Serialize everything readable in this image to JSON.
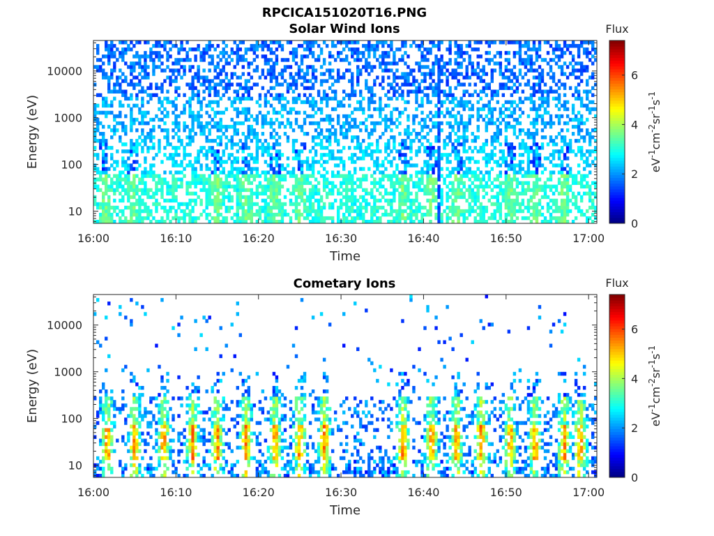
{
  "figure": {
    "title": "RPCICA151020T16.PNG"
  },
  "chart_data": [
    {
      "type": "heatmap",
      "id": "solar",
      "title": "Solar Wind Ions",
      "xlabel": "Time",
      "ylabel": "Energy (eV)",
      "x_tick_labels": [
        "16:00",
        "16:10",
        "16:20",
        "16:30",
        "16:40",
        "16:50",
        "17:00"
      ],
      "x_range_minutes": [
        0,
        61
      ],
      "y_scale": "log",
      "y_range": [
        5.5,
        45000
      ],
      "y_tick_values": [
        10,
        100,
        1000,
        10000
      ],
      "y_tick_labels": [
        "10",
        "100",
        "1000",
        "10000"
      ],
      "colorbar": {
        "title": "Flux",
        "label": "eV-1cm-2sr-1s-1",
        "range": [
          0,
          7.4
        ],
        "ticks": [
          "0",
          "2",
          "4",
          "6"
        ],
        "colormap": "jet"
      },
      "bursts_minutes": [
        1.5,
        4.8,
        15,
        18.5,
        22,
        25,
        37.5,
        41,
        44,
        50.5,
        53.5,
        57
      ],
      "spike_minute": 41.8,
      "grid": false
    },
    {
      "type": "heatmap",
      "id": "comet",
      "title": "Cometary Ions",
      "xlabel": "Time",
      "ylabel": "Energy (eV)",
      "x_tick_labels": [
        "16:00",
        "16:10",
        "16:20",
        "16:30",
        "16:40",
        "16:50",
        "17:00"
      ],
      "x_range_minutes": [
        0,
        61
      ],
      "y_scale": "log",
      "y_range": [
        5.5,
        45000
      ],
      "y_tick_values": [
        10,
        100,
        1000,
        10000
      ],
      "y_tick_labels": [
        "10",
        "100",
        "1000",
        "10000"
      ],
      "colorbar": {
        "title": "Flux",
        "label": "eV-1cm-2sr-1s-1",
        "range": [
          0,
          7.4
        ],
        "ticks": [
          "0",
          "2",
          "4",
          "6"
        ],
        "colormap": "jet"
      },
      "bursts_minutes": [
        1.7,
        5,
        8.5,
        12,
        15,
        18.5,
        22,
        25,
        28,
        37.5,
        41,
        44,
        47,
        50.5,
        53.5,
        57,
        59
      ],
      "grid": false
    }
  ]
}
